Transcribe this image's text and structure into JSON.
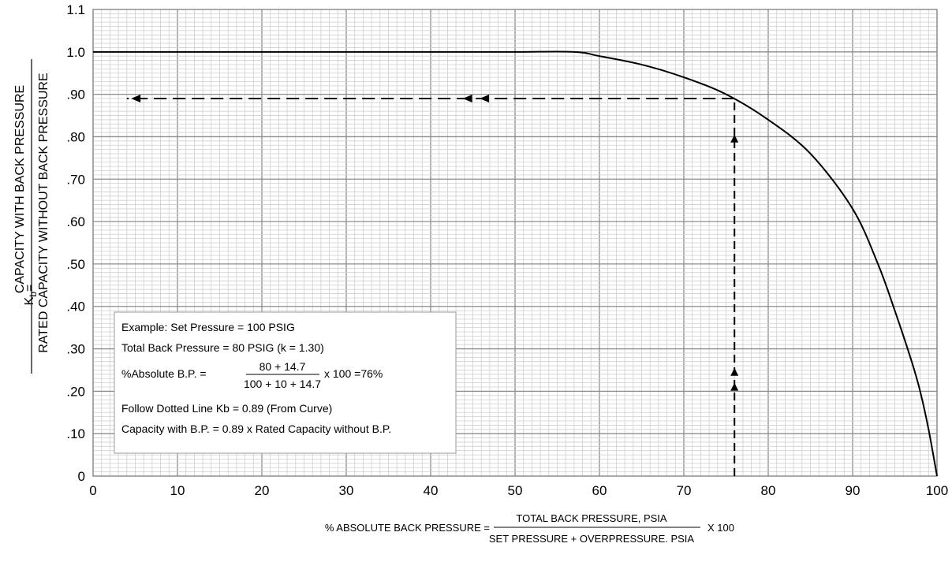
{
  "chart_data": {
    "type": "line",
    "title": "",
    "x_range": [
      0,
      100
    ],
    "y_range": [
      0,
      1.1
    ],
    "grid": true,
    "x_ticks": [
      "0",
      "10",
      "20",
      "30",
      "40",
      "50",
      "60",
      "70",
      "80",
      "90",
      "100"
    ],
    "y_ticks": [
      "0",
      ".10",
      ".20",
      ".30",
      ".40",
      ".50",
      ".60",
      ".70",
      ".80",
      ".90",
      "1.0",
      "1.1"
    ],
    "series": [
      {
        "x": [
          0,
          10,
          20,
          30,
          40,
          50,
          57,
          60,
          65,
          70,
          75,
          80,
          85,
          90,
          93,
          95,
          97,
          98,
          99,
          100
        ],
        "y": [
          1.0,
          1.0,
          1.0,
          1.0,
          1.0,
          1.0,
          1.0,
          0.99,
          0.97,
          0.94,
          0.9,
          0.84,
          0.76,
          0.63,
          0.5,
          0.39,
          0.27,
          0.2,
          0.11,
          0.0
        ]
      }
    ],
    "guide_lines": {
      "vertical_x": 76,
      "horizontal_y": 0.89
    },
    "y_axis_label": {
      "prefix": "K",
      "subscript": "b",
      "equals": "=",
      "numerator": "CAPACITY WITH BACK PRESSURE",
      "denominator": "RATED CAPACITY WITHOUT BACK PRESSURE"
    },
    "x_axis_label": {
      "prefix": "% ABSOLUTE BACK PRESSURE =",
      "numerator": "TOTAL BACK PRESSURE, PSIA",
      "denominator": "SET PRESSURE + OVERPRESSURE. PSIA",
      "suffix": "X 100"
    },
    "example_box": {
      "line1": "Example: Set Pressure = 100 PSIG",
      "line2": "Total Back Pressure = 80 PSIG (k = 1.30)",
      "line3_prefix": "%Absolute B.P. =",
      "line3_numerator": "80 + 14.7",
      "line3_denominator": "100 + 10 + 14.7",
      "line3_suffix": "x 100 =76%",
      "line4": "Follow Dotted Line Kb = 0.89 (From Curve)",
      "line5": "Capacity with B.P. = 0.89 x Rated Capacity without B.P."
    }
  }
}
